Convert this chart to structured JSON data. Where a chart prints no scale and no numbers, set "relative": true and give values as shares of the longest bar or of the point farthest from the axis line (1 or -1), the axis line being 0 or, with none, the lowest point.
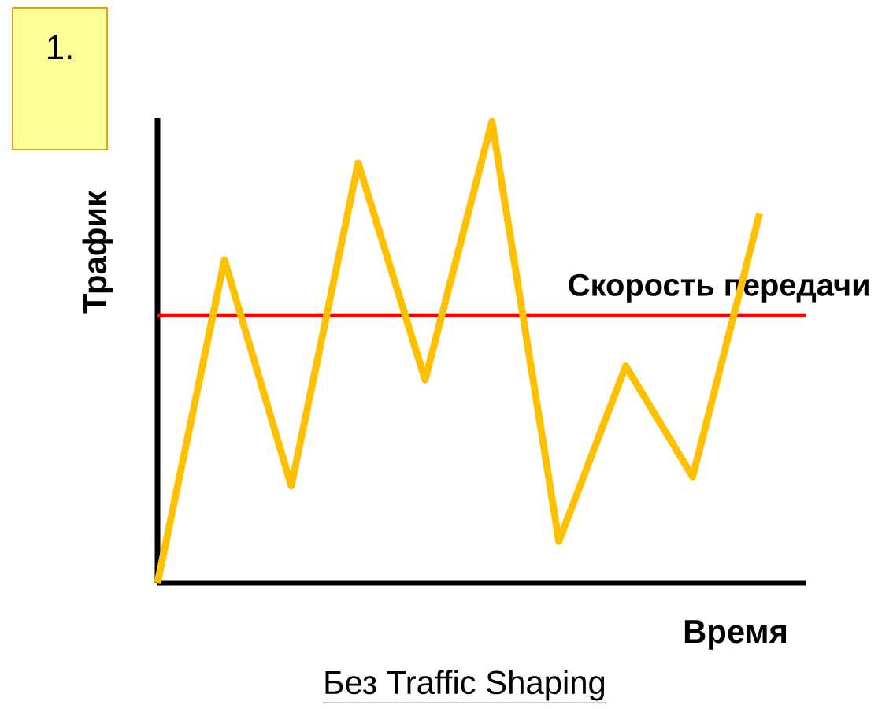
{
  "chart_data": {
    "type": "line",
    "relative": true,
    "color": "#ffc000",
    "categories": [
      null,
      null,
      null,
      null,
      null,
      null,
      null,
      null,
      null,
      null
    ],
    "values": [
      0,
      0.7,
      0.21,
      0.91,
      0.44,
      1.0,
      0.09,
      0.47,
      0.23,
      0.8
    ],
    "ref_lines": [
      {
        "axis": "y",
        "value": 0.58,
        "label": "Скорость передачи",
        "color": "#ff0000"
      }
    ],
    "xlabel": "Время",
    "ylabel": "Трафик",
    "annotations": [
      "1.",
      "Без Traffic Shaping"
    ]
  }
}
